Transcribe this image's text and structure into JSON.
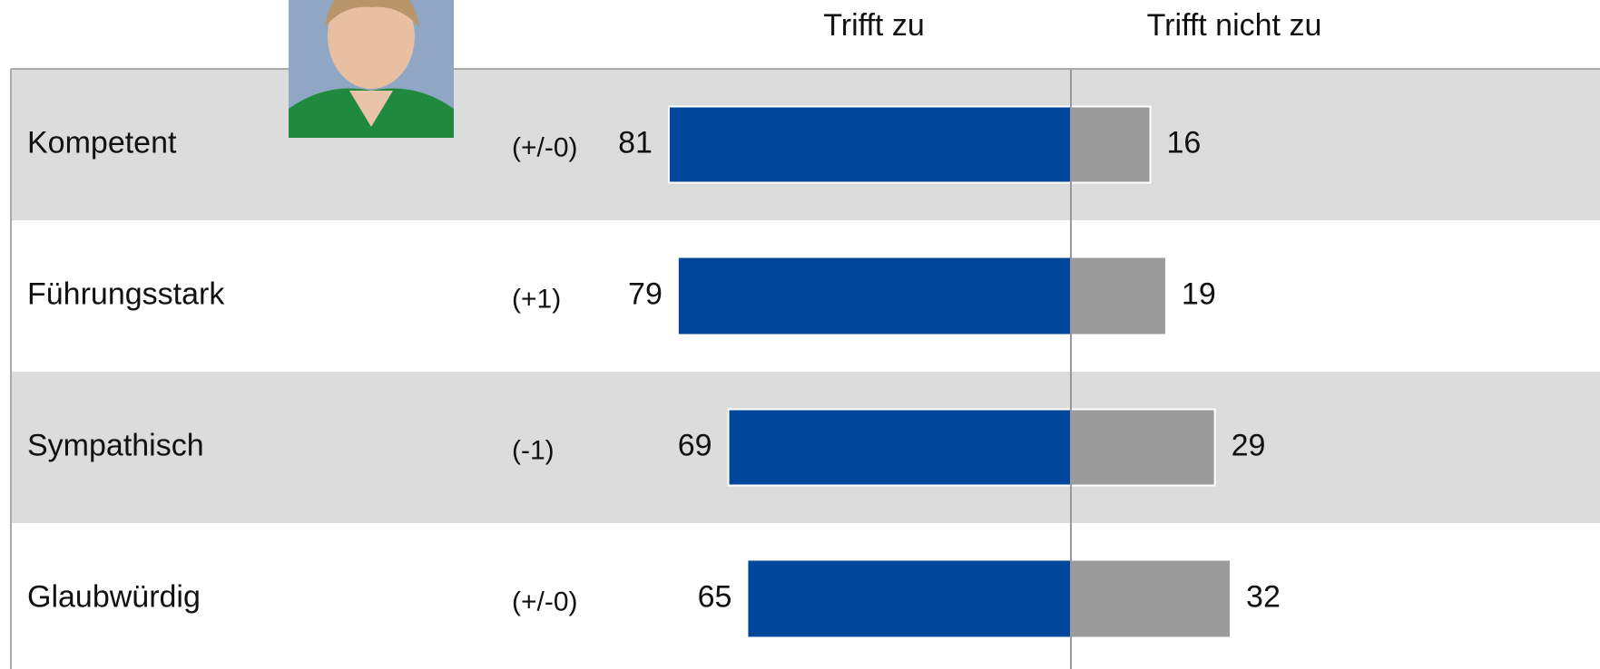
{
  "chart_data": {
    "type": "diverging_bar",
    "categories": [
      "Kompetent",
      "Führungsstark",
      "Sympathisch",
      "Glaubwürdig"
    ],
    "changes": [
      "(+/-0)",
      "(+1)",
      "(-1)",
      "(+/-0)"
    ],
    "series": [
      {
        "name": "Trifft zu",
        "color": "#00479b",
        "values": [
          81,
          79,
          69,
          65
        ]
      },
      {
        "name": "Trifft nicht zu",
        "color": "#9b9b9b",
        "values": [
          16,
          19,
          29,
          32
        ]
      }
    ]
  }
}
